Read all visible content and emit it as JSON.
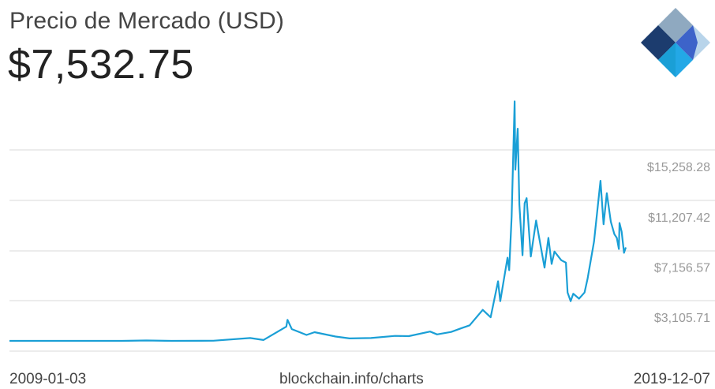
{
  "header": {
    "title": "Precio de Mercado (USD)",
    "current_price": "$7,532.75"
  },
  "logo": {
    "icon": "blockchain-logo-icon"
  },
  "footer": {
    "start_date": "2009-01-03",
    "source": "blockchain.info/charts",
    "end_date": "2019-12-07"
  },
  "colors": {
    "line": "#1a9fd6",
    "grid": "#d9d9d9",
    "tick_text": "#999999"
  },
  "chart_data": {
    "type": "line",
    "title": "Precio de Mercado (USD)",
    "xlabel": "",
    "ylabel": "",
    "xlim": [
      "2009-01-03",
      "2019-12-07"
    ],
    "ylim": [
      0,
      20000
    ],
    "grid": true,
    "y_ticks": [
      {
        "value": 3105.71,
        "label": "$3,105.71"
      },
      {
        "value": 7156.57,
        "label": "$7,156.57"
      },
      {
        "value": 11207.42,
        "label": "$11,207.42"
      },
      {
        "value": 15258.28,
        "label": "$15,258.28"
      }
    ],
    "series": [
      {
        "name": "",
        "points": [
          [
            "2009-01-03",
            0
          ],
          [
            "2010-07-17",
            0.05
          ],
          [
            "2011-01-01",
            0.3
          ],
          [
            "2011-06-08",
            30
          ],
          [
            "2011-11-18",
            2.3
          ],
          [
            "2012-08-15",
            13
          ],
          [
            "2013-04-10",
            230
          ],
          [
            "2013-07-05",
            70
          ],
          [
            "2013-11-30",
            1150
          ],
          [
            "2013-12-08",
            1700
          ],
          [
            "2014-01-05",
            950
          ],
          [
            "2014-04-10",
            480
          ],
          [
            "2014-06-01",
            700
          ],
          [
            "2014-10-15",
            350
          ],
          [
            "2015-01-14",
            200
          ],
          [
            "2015-06-01",
            230
          ],
          [
            "2015-11-04",
            400
          ],
          [
            "2016-02-01",
            380
          ],
          [
            "2016-06-18",
            750
          ],
          [
            "2016-08-02",
            520
          ],
          [
            "2016-11-01",
            720
          ],
          [
            "2017-01-01",
            1000
          ],
          [
            "2017-03-01",
            1250
          ],
          [
            "2017-05-25",
            2500
          ],
          [
            "2017-07-15",
            1900
          ],
          [
            "2017-09-01",
            4800
          ],
          [
            "2017-09-15",
            3200
          ],
          [
            "2017-11-01",
            6700
          ],
          [
            "2017-11-12",
            5700
          ],
          [
            "2017-11-28",
            10000
          ],
          [
            "2017-12-17",
            19300
          ],
          [
            "2017-12-22",
            13800
          ],
          [
            "2018-01-06",
            17100
          ],
          [
            "2018-01-17",
            11000
          ],
          [
            "2018-02-06",
            6900
          ],
          [
            "2018-02-20",
            11100
          ],
          [
            "2018-03-05",
            11500
          ],
          [
            "2018-04-01",
            6800
          ],
          [
            "2018-05-05",
            9700
          ],
          [
            "2018-06-29",
            5900
          ],
          [
            "2018-07-24",
            8300
          ],
          [
            "2018-08-14",
            6200
          ],
          [
            "2018-09-01",
            7200
          ],
          [
            "2018-10-15",
            6500
          ],
          [
            "2018-11-14",
            6300
          ],
          [
            "2018-11-25",
            3900
          ],
          [
            "2018-12-15",
            3200
          ],
          [
            "2019-01-01",
            3800
          ],
          [
            "2019-02-07",
            3400
          ],
          [
            "2019-03-15",
            3900
          ],
          [
            "2019-04-03",
            5000
          ],
          [
            "2019-05-15",
            8000
          ],
          [
            "2019-06-26",
            12900
          ],
          [
            "2019-07-16",
            9400
          ],
          [
            "2019-08-06",
            11900
          ],
          [
            "2019-09-01",
            9600
          ],
          [
            "2019-09-24",
            8600
          ],
          [
            "2019-10-10",
            8300
          ],
          [
            "2019-10-23",
            7400
          ],
          [
            "2019-10-27",
            9500
          ],
          [
            "2019-11-10",
            8800
          ],
          [
            "2019-11-25",
            7100
          ],
          [
            "2019-12-07",
            7532.75
          ]
        ]
      }
    ]
  }
}
